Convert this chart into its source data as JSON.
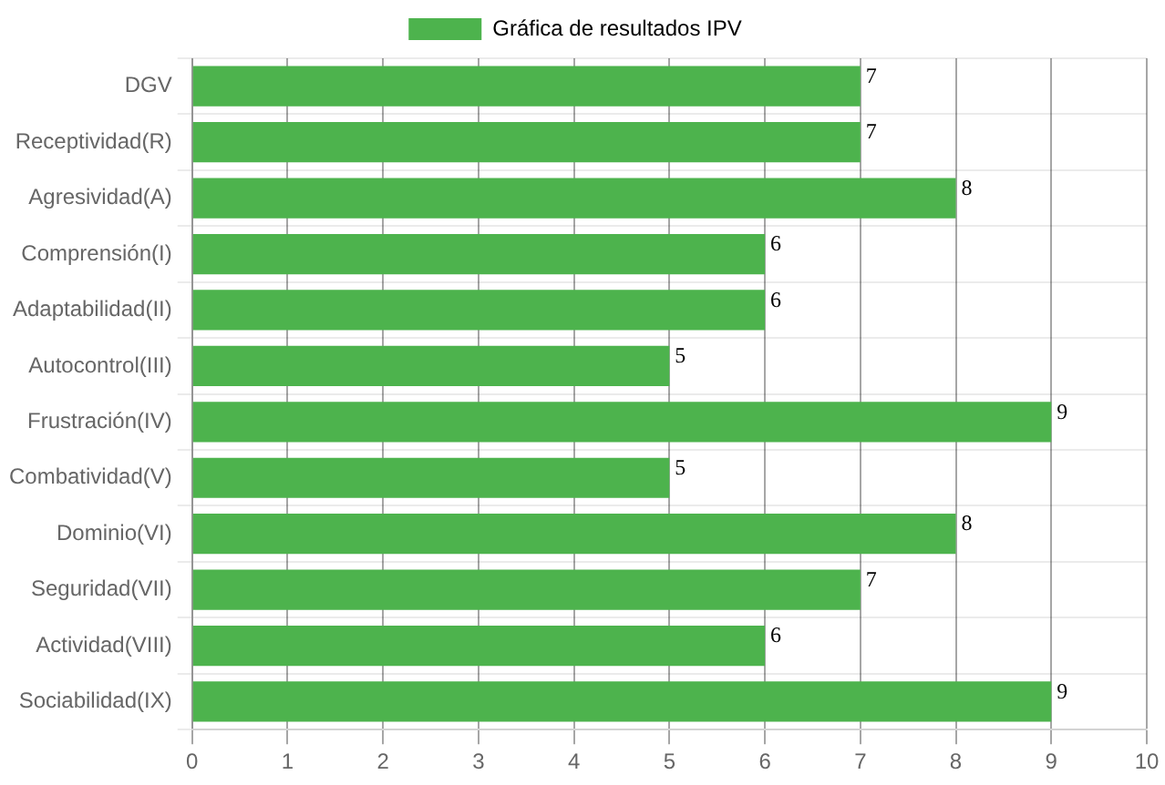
{
  "chart_data": {
    "type": "bar",
    "orientation": "horizontal",
    "categories": [
      "DGV",
      "Receptividad(R)",
      "Agresividad(A)",
      "Comprensión(I)",
      "Adaptabilidad(II)",
      "Autocontrol(III)",
      "Frustración(IV)",
      "Combatividad(V)",
      "Dominio(VI)",
      "Seguridad(VII)",
      "Actividad(VIII)",
      "Sociabilidad(IX)"
    ],
    "series": [
      {
        "name": "Gráfica de resultados IPV",
        "color": "#4db34d",
        "values": [
          7,
          7,
          8,
          6,
          6,
          5,
          9,
          5,
          8,
          7,
          6,
          9
        ]
      }
    ],
    "xlim": [
      0,
      10
    ],
    "xticks": [
      0,
      1,
      2,
      3,
      4,
      5,
      6,
      7,
      8,
      9,
      10
    ],
    "grid": true,
    "legend": "top",
    "data_labels": true
  }
}
